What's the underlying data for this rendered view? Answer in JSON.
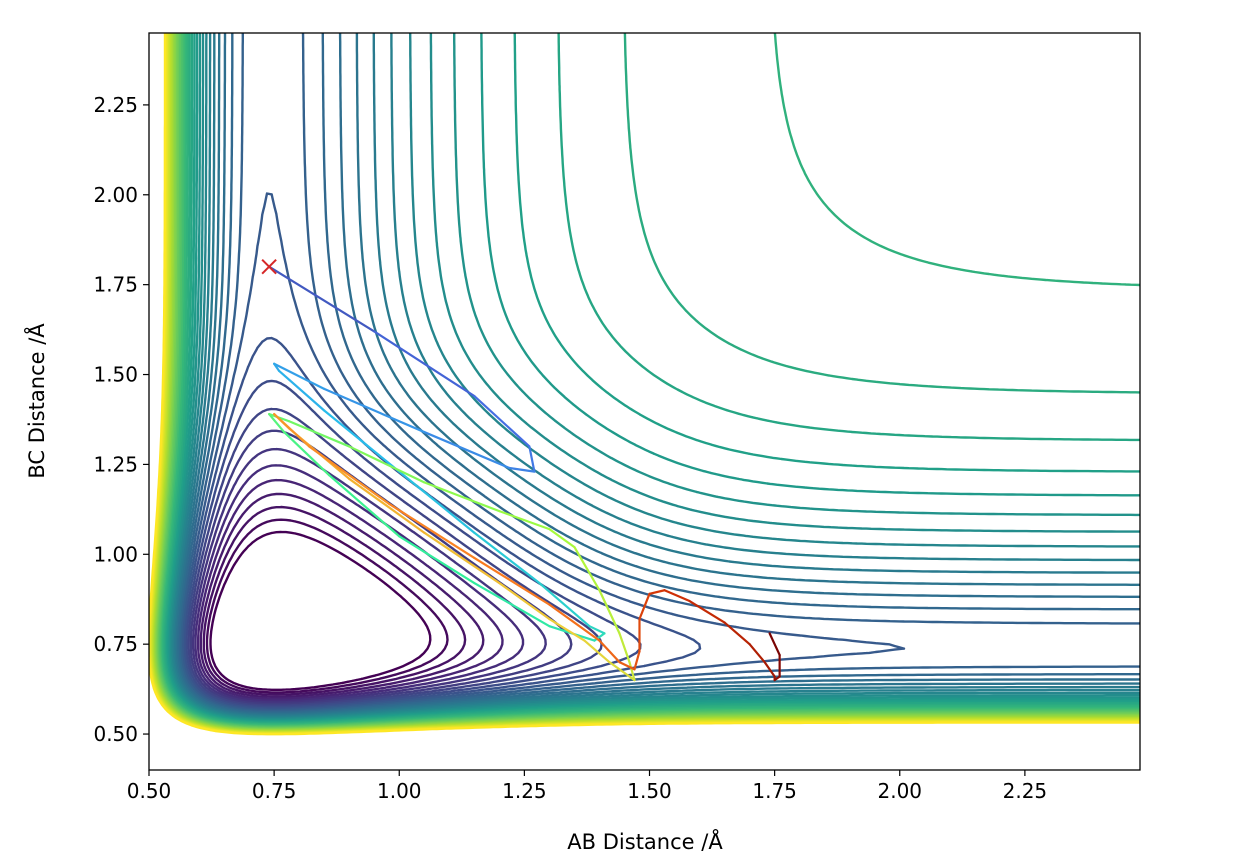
{
  "chart_data": {
    "type": "contour",
    "xlabel": "AB Distance /Å",
    "ylabel": "BC Distance /Å",
    "xlim": [
      0.5,
      2.48
    ],
    "ylim": [
      0.4,
      2.45
    ],
    "x_ticks": [
      "0.50",
      "0.75",
      "1.00",
      "1.25",
      "1.50",
      "1.75",
      "2.00",
      "2.25"
    ],
    "y_ticks": [
      "0.50",
      "0.75",
      "1.00",
      "1.25",
      "1.50",
      "1.75",
      "2.00",
      "2.25"
    ],
    "grid": false,
    "colormap": "viridis",
    "contour_levels": 40,
    "start_marker": {
      "x": 0.74,
      "y": 1.8,
      "symbol": "x",
      "color": "#d62728"
    },
    "trajectory": [
      [
        0.74,
        1.8
      ],
      [
        0.95,
        1.62
      ],
      [
        1.15,
        1.44
      ],
      [
        1.26,
        1.3
      ],
      [
        1.27,
        1.23
      ],
      [
        1.22,
        1.24
      ],
      [
        1.05,
        1.34
      ],
      [
        0.85,
        1.46
      ],
      [
        0.75,
        1.53
      ],
      [
        0.76,
        1.51
      ],
      [
        0.85,
        1.4
      ],
      [
        1.0,
        1.23
      ],
      [
        1.15,
        1.06
      ],
      [
        1.28,
        0.92
      ],
      [
        1.38,
        0.8
      ],
      [
        1.41,
        0.78
      ],
      [
        1.39,
        0.76
      ],
      [
        1.3,
        0.8
      ],
      [
        1.15,
        0.92
      ],
      [
        1.0,
        1.05
      ],
      [
        0.86,
        1.22
      ],
      [
        0.77,
        1.34
      ],
      [
        0.74,
        1.39
      ],
      [
        0.78,
        1.37
      ],
      [
        0.9,
        1.3
      ],
      [
        1.05,
        1.2
      ],
      [
        1.2,
        1.12
      ],
      [
        1.3,
        1.07
      ],
      [
        1.35,
        1.02
      ],
      [
        1.4,
        0.9
      ],
      [
        1.44,
        0.78
      ],
      [
        1.46,
        0.7
      ],
      [
        1.47,
        0.65
      ],
      [
        1.46,
        0.66
      ],
      [
        1.42,
        0.7
      ],
      [
        1.37,
        0.76
      ],
      [
        1.3,
        0.82
      ],
      [
        1.2,
        0.92
      ],
      [
        1.05,
        1.06
      ],
      [
        0.9,
        1.21
      ],
      [
        0.78,
        1.35
      ],
      [
        0.75,
        1.39
      ],
      [
        0.82,
        1.3
      ],
      [
        0.98,
        1.14
      ],
      [
        1.15,
        0.99
      ],
      [
        1.3,
        0.86
      ],
      [
        1.4,
        0.76
      ],
      [
        1.44,
        0.7
      ],
      [
        1.47,
        0.68
      ],
      [
        1.48,
        0.73
      ],
      [
        1.48,
        0.82
      ],
      [
        1.5,
        0.89
      ],
      [
        1.53,
        0.9
      ],
      [
        1.58,
        0.87
      ],
      [
        1.65,
        0.81
      ],
      [
        1.7,
        0.75
      ],
      [
        1.73,
        0.7
      ],
      [
        1.75,
        0.66
      ],
      [
        1.75,
        0.65
      ],
      [
        1.76,
        0.66
      ],
      [
        1.76,
        0.72
      ],
      [
        1.74,
        0.78
      ]
    ],
    "trajectory_colormap": "turbo"
  }
}
